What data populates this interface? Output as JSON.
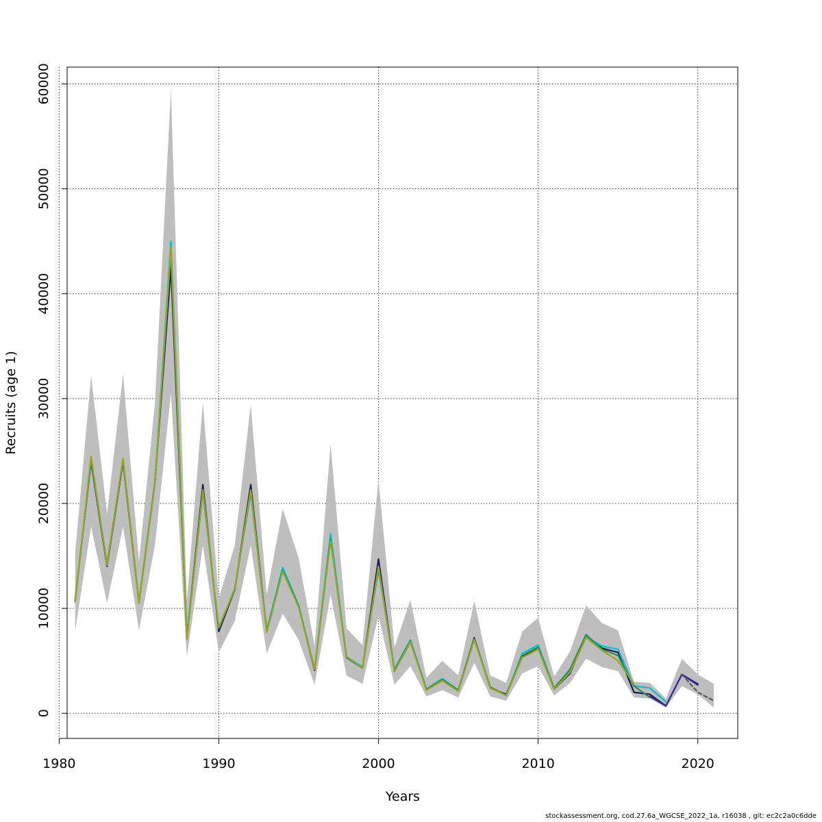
{
  "chart_data": {
    "type": "line",
    "xlabel": "Years",
    "ylabel": "Recruits (age 1)",
    "xlim": [
      1980.5,
      2022.5
    ],
    "ylim": [
      -2400,
      61600
    ],
    "x_ticks": [
      1980,
      1990,
      2000,
      2010,
      2020
    ],
    "y_ticks": [
      0,
      10000,
      20000,
      30000,
      40000,
      50000,
      60000
    ],
    "grid": true,
    "ci_color": "#bebebe",
    "confidence_band": {
      "x": [
        1981,
        1982,
        1983,
        1984,
        1985,
        1986,
        1987,
        1988,
        1989,
        1990,
        1991,
        1992,
        1993,
        1994,
        1995,
        1996,
        1997,
        1998,
        1999,
        2000,
        2001,
        2002,
        2003,
        2004,
        2005,
        2006,
        2007,
        2008,
        2009,
        2010,
        2011,
        2012,
        2013,
        2014,
        2015,
        2016,
        2017,
        2018,
        2019,
        2020,
        2021
      ],
      "lower": [
        7800,
        17800,
        10500,
        17800,
        7900,
        16000,
        30500,
        5400,
        16000,
        5800,
        8800,
        16000,
        5700,
        9500,
        7000,
        2700,
        11300,
        3600,
        2800,
        9300,
        2700,
        4500,
        1600,
        2200,
        1500,
        4800,
        1600,
        1200,
        3800,
        4500,
        1700,
        2900,
        5200,
        4400,
        4000,
        1500,
        1400,
        550,
        2600,
        1800,
        550
      ],
      "upper": [
        15200,
        32200,
        19000,
        32300,
        14500,
        29500,
        59500,
        10700,
        29600,
        11000,
        16000,
        29400,
        11300,
        19500,
        14800,
        6400,
        25700,
        8100,
        6500,
        22300,
        6300,
        10800,
        3400,
        5000,
        3600,
        10700,
        3600,
        2900,
        7800,
        9100,
        3500,
        5900,
        10300,
        8600,
        7900,
        3000,
        2900,
        1400,
        5200,
        3700,
        2800
      ]
    },
    "series": [
      {
        "color": "#1b1b4d",
        "x": [
          1981,
          1982,
          1983,
          1984,
          1985,
          1986,
          1987,
          1988,
          1989,
          1990,
          1991,
          1992,
          1993,
          1994,
          1995,
          1996,
          1997,
          1998,
          1999,
          2000,
          2001,
          2002,
          2003,
          2004,
          2005,
          2006,
          2007,
          2008,
          2009,
          2010,
          2011,
          2012,
          2013,
          2014,
          2015,
          2016,
          2017,
          2018,
          2019,
          2020
        ],
        "values": [
          10800,
          24000,
          14000,
          24000,
          10500,
          22000,
          42500,
          7200,
          21800,
          7800,
          11800,
          21800,
          7800,
          13700,
          10200,
          4100,
          16800,
          5300,
          4300,
          14700,
          4000,
          6800,
          2300,
          3200,
          2200,
          7200,
          2400,
          1800,
          5400,
          6300,
          2300,
          3800,
          7400,
          6200,
          5800,
          2000,
          1800,
          700,
          3700,
          2700
        ],
        "dashed": false
      },
      {
        "color": "#3a2a9a",
        "x": [
          2017,
          2018,
          2019,
          2020
        ],
        "values": [
          1600,
          700,
          3700,
          2800
        ],
        "dashed": false
      },
      {
        "color": "#00bcd4",
        "x": [
          1981,
          1982,
          1983,
          1984,
          1985,
          1986,
          1987,
          1988,
          1989,
          1990,
          1991,
          1992,
          1993,
          1994,
          1995,
          1996,
          1997,
          1998,
          1999,
          2000,
          2001,
          2002,
          2003,
          2004,
          2005,
          2006,
          2007,
          2008,
          2009,
          2010,
          2011,
          2012,
          2013,
          2014,
          2015,
          2016,
          2017,
          2018
        ],
        "values": [
          10700,
          24200,
          14200,
          24200,
          10600,
          22100,
          45000,
          7300,
          21100,
          8100,
          11900,
          21000,
          7900,
          13900,
          10300,
          4200,
          17100,
          5400,
          4400,
          13700,
          4200,
          7000,
          2300,
          3300,
          2200,
          7100,
          2500,
          1700,
          5700,
          6500,
          2400,
          4100,
          7300,
          6400,
          6100,
          2600,
          2400,
          1100
        ],
        "dashed": false
      },
      {
        "color": "#2e8b57",
        "x": [
          1981,
          1982,
          1983,
          1984,
          1985,
          1986,
          1987,
          1988,
          1989,
          1990,
          1991,
          1992,
          1993,
          1994,
          1995,
          1996,
          1997,
          1998,
          1999,
          2000,
          2001,
          2002,
          2003,
          2004,
          2005,
          2006,
          2007,
          2008,
          2009,
          2010,
          2011,
          2012,
          2013,
          2014,
          2015,
          2016,
          2017
        ],
        "values": [
          10700,
          24300,
          14200,
          24200,
          10600,
          22000,
          44000,
          7100,
          21200,
          8100,
          11800,
          21200,
          7800,
          13600,
          10200,
          4200,
          16600,
          5300,
          4300,
          13900,
          4100,
          6900,
          2300,
          3200,
          2200,
          7100,
          2500,
          1700,
          5500,
          6300,
          2400,
          4200,
          7500,
          6100,
          5500,
          2600,
          1500
        ],
        "dashed": false
      },
      {
        "color": "#9aa622",
        "x": [
          1981,
          1982,
          1983,
          1984,
          1985,
          1986,
          1987,
          1988,
          1989,
          1990,
          1991,
          1992,
          1993,
          1994,
          1995,
          1996,
          1997,
          1998,
          1999,
          2000,
          2001,
          2002,
          2003,
          2004,
          2005,
          2006,
          2007,
          2008,
          2009,
          2010,
          2011,
          2012,
          2013,
          2014,
          2015,
          2016
        ],
        "values": [
          10600,
          24500,
          14100,
          24300,
          10500,
          21900,
          44500,
          7000,
          21300,
          8200,
          11900,
          21300,
          7700,
          13500,
          10100,
          4200,
          16400,
          5400,
          4300,
          14000,
          4000,
          6800,
          2200,
          3100,
          2100,
          7000,
          2400,
          1700,
          5300,
          6100,
          2300,
          3900,
          7200,
          6000,
          5000,
          2800
        ],
        "dashed": false
      },
      {
        "color": "#555555",
        "x": [
          2019,
          2020,
          2021
        ],
        "values": [
          3700,
          2000,
          1200
        ],
        "dashed": true
      }
    ]
  },
  "footer": "stockassessment.org, cod.27.6a_WGCSE_2022_1a, r16038 , git: ec2c2a0c6dde"
}
